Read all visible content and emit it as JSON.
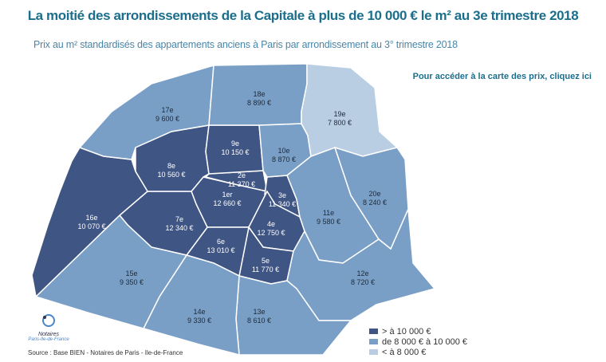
{
  "title": "La moitié des arrondissements de la Capitale à plus de 10 000 € le m² au 3e trimestre 2018",
  "subtitle": "Prix au m² standardisés des appartements anciens à Paris par arrondissement au 3° trimestre 2018",
  "link": "Pour accéder à la carte des prix, cliquez ici",
  "colors": {
    "high": "#3f5584",
    "mid": "#7a9fc6",
    "low": "#b9cde3",
    "title": "#1b6e8c"
  },
  "arrondissements": [
    {
      "name": "1er",
      "price": "12 660 €",
      "class": "high"
    },
    {
      "name": "2e",
      "price": "11 370 €",
      "class": "high"
    },
    {
      "name": "3e",
      "price": "11 340 €",
      "class": "high"
    },
    {
      "name": "4e",
      "price": "12 750 €",
      "class": "high"
    },
    {
      "name": "5e",
      "price": "11 770 €",
      "class": "high"
    },
    {
      "name": "6e",
      "price": "13 010 €",
      "class": "high"
    },
    {
      "name": "7e",
      "price": "12 340 €",
      "class": "high"
    },
    {
      "name": "8e",
      "price": "10 560 €",
      "class": "high"
    },
    {
      "name": "9e",
      "price": "10 150 €",
      "class": "high"
    },
    {
      "name": "10e",
      "price": "8 870 €",
      "class": "mid"
    },
    {
      "name": "11e",
      "price": "9 580 €",
      "class": "mid"
    },
    {
      "name": "12e",
      "price": "8 720 €",
      "class": "mid"
    },
    {
      "name": "13e",
      "price": "8 610 €",
      "class": "mid"
    },
    {
      "name": "14e",
      "price": "9 330 €",
      "class": "mid"
    },
    {
      "name": "15e",
      "price": "9 350 €",
      "class": "mid"
    },
    {
      "name": "16e",
      "price": "10 070 €",
      "class": "high"
    },
    {
      "name": "17e",
      "price": "9 600 €",
      "class": "mid"
    },
    {
      "name": "18e",
      "price": "8 890 €",
      "class": "mid"
    },
    {
      "name": "19e",
      "price": "7 800 €",
      "class": "low"
    },
    {
      "name": "20e",
      "price": "8 240 €",
      "class": "mid"
    }
  ],
  "legend": [
    {
      "label": "> à 10 000 €",
      "class": "high"
    },
    {
      "label": "de 8 000 € à 10 000 €",
      "class": "mid"
    },
    {
      "label": "< à 8 000 €",
      "class": "low"
    }
  ],
  "logo": {
    "name": "Notaires",
    "sub": "Paris-Ile-de-France"
  },
  "source": "Source : Base BIEN - Notaires de Paris - Ile-de-France"
}
